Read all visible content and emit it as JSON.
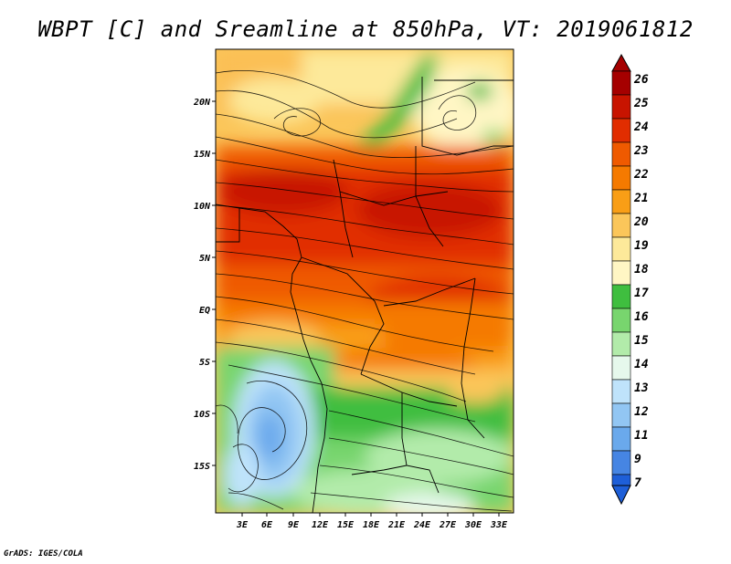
{
  "title": "WBPT [C] and Sreamline at 850hPa, VT: 2019061812",
  "credit": "GrADS: IGES/COLA",
  "map": {
    "lat_labels": [
      "20N",
      "15N",
      "10N",
      "5N",
      "EQ",
      "5S",
      "10S",
      "15S"
    ],
    "lon_labels": [
      "3E",
      "6E",
      "9E",
      "12E",
      "15E",
      "18E",
      "21E",
      "24E",
      "27E",
      "30E",
      "33E"
    ]
  },
  "colorbar": {
    "labels": [
      "26",
      "25",
      "24",
      "23",
      "22",
      "21",
      "20",
      "19",
      "18",
      "17",
      "16",
      "15",
      "14",
      "13",
      "12",
      "11",
      "9",
      "7"
    ],
    "colors": [
      "#a50000",
      "#c81400",
      "#e12d00",
      "#ef5a00",
      "#f57a00",
      "#f99e16",
      "#fbc65a",
      "#fde99a",
      "#fff6c4",
      "#3fbe3f",
      "#78d56e",
      "#b2ebaa",
      "#e6f8ec",
      "#bfe3fb",
      "#92c6f3",
      "#6aa9ec",
      "#4685e3",
      "#1e5fd8"
    ]
  }
}
